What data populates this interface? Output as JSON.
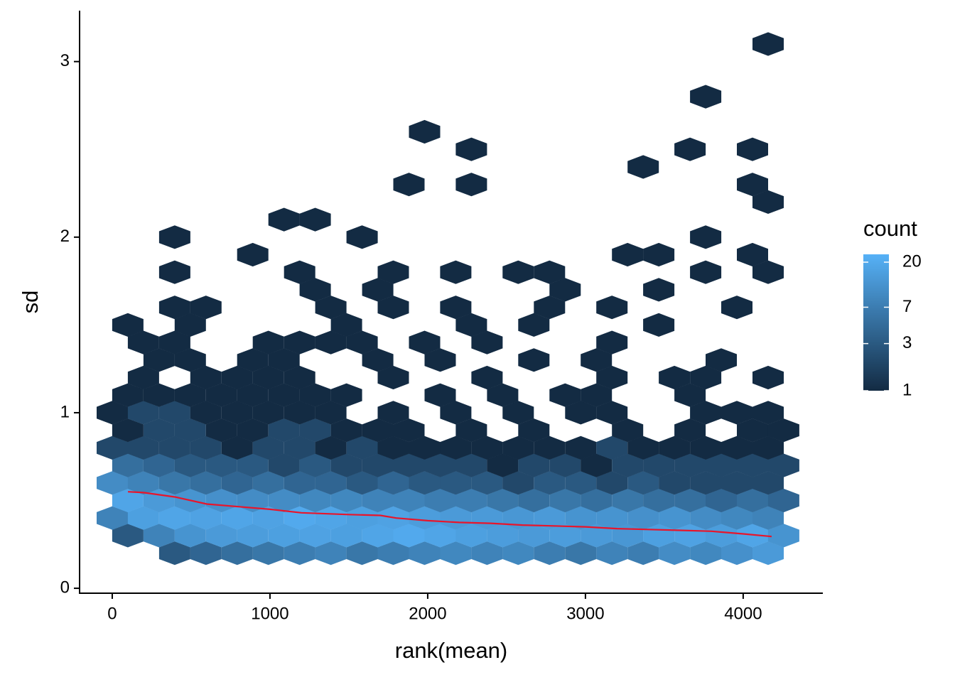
{
  "chart_data": {
    "type": "hexbin",
    "x_label": "rank(mean)",
    "y_label": "sd",
    "xlim": [
      -207,
      4505
    ],
    "ylim": [
      -0.028,
      3.29
    ],
    "xticks": [
      0,
      1000,
      2000,
      3000,
      4000
    ],
    "yticks": [
      0,
      1,
      2,
      3
    ],
    "fill_scale": {
      "title": "count",
      "lim": [
        1,
        24
      ],
      "ticks": [
        1,
        3,
        7,
        20
      ],
      "log": true,
      "low": "#132B43",
      "high": "#56B1F7"
    },
    "rows": [
      {
        "y": 0.2,
        "x": [
          396,
          594,
          792,
          990,
          1188,
          1386,
          1584,
          1782,
          1980,
          2178,
          2376,
          2574,
          2772,
          2970,
          3168,
          3366,
          3564,
          3762,
          3960,
          4158
        ],
        "count": [
          3,
          4,
          5,
          6,
          7,
          8,
          6,
          7,
          8,
          9,
          8,
          9,
          7,
          6,
          8,
          7,
          10,
          9,
          11,
          14
        ]
      },
      {
        "y": 0.3,
        "x": [
          99,
          297,
          495,
          693,
          891,
          1089,
          1287,
          1485,
          1683,
          1881,
          2079,
          2277,
          2475,
          2673,
          2871,
          3069,
          3267,
          3465,
          3663,
          3861,
          4059,
          4257
        ],
        "count": [
          3,
          8,
          12,
          14,
          15,
          16,
          17,
          16,
          18,
          20,
          18,
          16,
          15,
          14,
          15,
          14,
          13,
          16,
          17,
          15,
          18,
          12
        ]
      },
      {
        "y": 0.4,
        "x": [
          0,
          198,
          396,
          594,
          792,
          990,
          1188,
          1386,
          1584,
          1782,
          1980,
          2178,
          2376,
          2574,
          2772,
          2970,
          3168,
          3366,
          3564,
          3762,
          3960,
          4158
        ],
        "count": [
          8,
          16,
          18,
          17,
          18,
          17,
          20,
          18,
          16,
          17,
          15,
          14,
          14,
          13,
          14,
          12,
          12,
          11,
          12,
          10,
          9,
          8
        ]
      },
      {
        "y": 0.5,
        "x": [
          99,
          297,
          495,
          693,
          891,
          1089,
          1287,
          1485,
          1683,
          1881,
          2079,
          2277,
          2475,
          2673,
          2871,
          3069,
          3267,
          3465,
          3663,
          3861,
          4059,
          4257
        ],
        "count": [
          18,
          14,
          12,
          11,
          10,
          10,
          9,
          9,
          8,
          8,
          7,
          7,
          6,
          5,
          6,
          5,
          6,
          5,
          5,
          4,
          5,
          4
        ]
      },
      {
        "y": 0.6,
        "x": [
          0,
          198,
          396,
          594,
          792,
          990,
          1188,
          1386,
          1584,
          1782,
          1980,
          2178,
          2376,
          2574,
          2772,
          2970,
          3168,
          3366,
          3564,
          3762,
          3960,
          4158
        ],
        "count": [
          10,
          8,
          6,
          5,
          4,
          5,
          4,
          4,
          3,
          4,
          3,
          3,
          3,
          2,
          3,
          3,
          2,
          3,
          2,
          2,
          2,
          2
        ]
      },
      {
        "y": 0.7,
        "x": [
          99,
          297,
          495,
          693,
          891,
          1089,
          1287,
          1485,
          1683,
          1881,
          2079,
          2277,
          2475,
          2673,
          2871,
          3069,
          3267,
          3465,
          3663,
          3861,
          4059,
          4257
        ],
        "count": [
          5,
          4,
          3,
          3,
          3,
          2,
          3,
          2,
          2,
          2,
          2,
          2,
          1,
          2,
          2,
          1,
          2,
          2,
          2,
          2,
          2,
          2
        ]
      },
      {
        "y": 0.8,
        "x": [
          0,
          198,
          396,
          594,
          792,
          990,
          1188,
          1386,
          1584,
          1782,
          1980,
          2178,
          2376,
          2574,
          2772,
          2970,
          3168,
          3366,
          3564,
          3762,
          3960,
          4158
        ],
        "count": [
          2,
          2,
          2,
          2,
          1,
          2,
          2,
          1,
          2,
          1,
          1,
          1,
          1,
          1,
          1,
          1,
          2,
          1,
          1,
          1,
          1,
          1
        ]
      },
      {
        "y": 0.9,
        "x": [
          99,
          297,
          495,
          693,
          891,
          1089,
          1287,
          1485,
          1683,
          1881,
          2277,
          2673,
          3267,
          3663,
          4059,
          4257
        ],
        "count": [
          1,
          2,
          2,
          1,
          1,
          2,
          2,
          1,
          1,
          1,
          1,
          1,
          1,
          1,
          1,
          1
        ]
      },
      {
        "y": 1.0,
        "x": [
          0,
          198,
          396,
          594,
          792,
          990,
          1188,
          1386,
          1782,
          2178,
          2574,
          2970,
          3168,
          3762,
          3960,
          4158
        ],
        "count": [
          1,
          2,
          2,
          1,
          1,
          1,
          1,
          1,
          1,
          1,
          1,
          1,
          1,
          1,
          1,
          1
        ]
      },
      {
        "y": 1.1,
        "x": [
          99,
          297,
          495,
          693,
          891,
          1089,
          1287,
          1485,
          2079,
          2475,
          2871,
          3069,
          3663
        ],
        "count": [
          1,
          1,
          1,
          1,
          1,
          1,
          1,
          1,
          1,
          1,
          1,
          1,
          1
        ]
      },
      {
        "y": 1.2,
        "x": [
          198,
          594,
          792,
          990,
          1188,
          1782,
          2376,
          3168,
          3564,
          3762,
          4158
        ],
        "count": [
          1,
          1,
          1,
          1,
          1,
          1,
          1,
          1,
          1,
          1,
          1
        ]
      },
      {
        "y": 1.3,
        "x": [
          297,
          495,
          891,
          1089,
          1683,
          2079,
          2673,
          3069,
          3861
        ],
        "count": [
          1,
          1,
          1,
          1,
          1,
          1,
          1,
          1,
          1
        ]
      },
      {
        "y": 1.4,
        "x": [
          198,
          396,
          990,
          1188,
          1386,
          1584,
          1980,
          2376,
          3168
        ],
        "count": [
          1,
          1,
          1,
          1,
          1,
          1,
          1,
          1,
          1
        ]
      },
      {
        "y": 1.5,
        "x": [
          99,
          495,
          1485,
          2277,
          2673,
          3465
        ],
        "count": [
          1,
          1,
          1,
          1,
          1,
          1
        ]
      },
      {
        "y": 1.6,
        "x": [
          396,
          594,
          1386,
          1782,
          2178,
          2772,
          3168,
          3960
        ],
        "count": [
          1,
          1,
          1,
          1,
          1,
          1,
          1,
          1
        ]
      },
      {
        "y": 1.7,
        "x": [
          1287,
          1683,
          2871,
          3465
        ],
        "count": [
          1,
          1,
          1,
          1
        ]
      },
      {
        "y": 1.8,
        "x": [
          396,
          1188,
          1782,
          2178,
          2574,
          2772,
          3762,
          4158
        ],
        "count": [
          1,
          1,
          1,
          1,
          1,
          1,
          1,
          1
        ]
      },
      {
        "y": 1.9,
        "x": [
          891,
          3267,
          3465,
          4059
        ],
        "count": [
          1,
          1,
          1,
          1
        ]
      },
      {
        "y": 2.0,
        "x": [
          396,
          1584,
          3762
        ],
        "count": [
          1,
          1,
          1
        ]
      },
      {
        "y": 2.1,
        "x": [
          1089,
          1287
        ],
        "count": [
          1,
          1
        ]
      },
      {
        "y": 2.2,
        "x": [
          4158
        ],
        "count": [
          1
        ]
      },
      {
        "y": 2.3,
        "x": [
          1881,
          2277,
          4059
        ],
        "count": [
          1,
          1,
          1
        ]
      },
      {
        "y": 2.4,
        "x": [
          3366
        ],
        "count": [
          1
        ]
      },
      {
        "y": 2.5,
        "x": [
          2277,
          3663,
          4059
        ],
        "count": [
          1,
          1,
          1
        ]
      },
      {
        "y": 2.6,
        "x": [
          1980
        ],
        "count": [
          1
        ]
      },
      {
        "y": 2.8,
        "x": [
          3762
        ],
        "count": [
          1
        ]
      },
      {
        "y": 3.1,
        "x": [
          4158
        ],
        "count": [
          1
        ]
      }
    ],
    "smooth": {
      "color": "#e8152b",
      "x": [
        100,
        200,
        400,
        600,
        800,
        1000,
        1200,
        1500,
        1700,
        1800,
        2000,
        2200,
        2400,
        2600,
        2800,
        3000,
        3200,
        3400,
        3600,
        3800,
        4000,
        4180
      ],
      "y": [
        0.55,
        0.545,
        0.52,
        0.48,
        0.465,
        0.45,
        0.43,
        0.42,
        0.415,
        0.4,
        0.385,
        0.375,
        0.37,
        0.36,
        0.355,
        0.35,
        0.34,
        0.335,
        0.33,
        0.325,
        0.31,
        0.295
      ]
    }
  }
}
